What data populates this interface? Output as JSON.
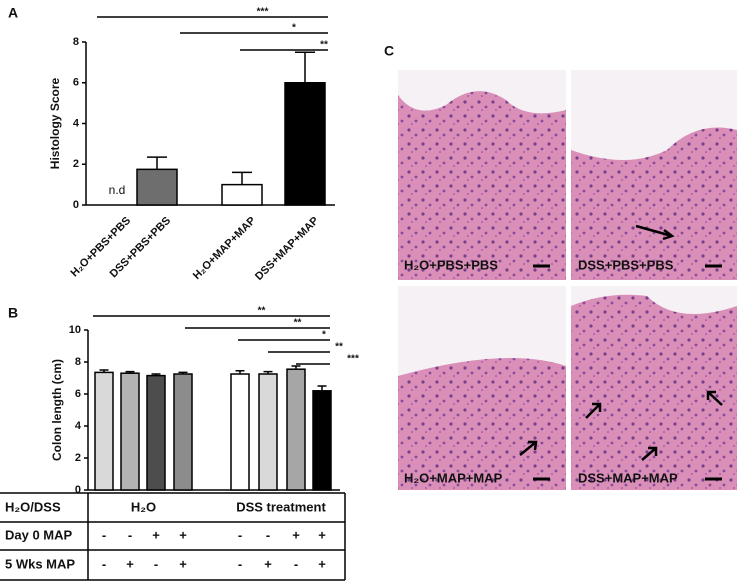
{
  "chart_data": [
    {
      "type": "bar",
      "panel": "A",
      "y_label": "Histology Score",
      "categories": [
        "H₂O+PBS+PBS",
        "DSS+PBS+PBS",
        "H₂O+MAP+MAP",
        "DSS+MAP+MAP"
      ],
      "values": [
        null,
        1.75,
        1.0,
        6.0
      ],
      "errors": [
        null,
        0.6,
        0.6,
        1.5
      ],
      "colors": [
        "#ffffff",
        "#6e6e6e",
        "#ffffff",
        "#000000"
      ],
      "annotations": [
        "n.d"
      ],
      "significance": [
        "***",
        "*",
        "**"
      ],
      "ylim": [
        0,
        8
      ],
      "yticks": [
        0,
        2,
        4,
        6,
        8
      ]
    },
    {
      "type": "bar",
      "panel": "B",
      "y_label": "Colon length (cm)",
      "categories": [
        null,
        null,
        null,
        null,
        null,
        null,
        null,
        null
      ],
      "values": [
        7.35,
        7.3,
        7.15,
        7.25,
        7.25,
        7.25,
        7.55,
        6.2
      ],
      "errors": [
        0.15,
        0.1,
        0.1,
        0.1,
        0.2,
        0.15,
        0.2,
        0.3
      ],
      "colors": [
        "#d9d9d9",
        "#b3b3b3",
        "#4d4d4d",
        "#8c8c8c",
        "#ffffff",
        "#d9d9d9",
        "#a6a6a6",
        "#000000"
      ],
      "significance": [
        "**",
        "**",
        "*",
        "**",
        "***"
      ],
      "ylim": [
        0,
        10
      ],
      "yticks": [
        0,
        2,
        4,
        6,
        8,
        10
      ],
      "conditions": {
        "group_row": {
          "label": "H₂O/DSS",
          "groups": [
            "H₂O",
            "DSS treatment"
          ]
        },
        "rows": [
          {
            "label": "Day 0 MAP",
            "values": [
              "-",
              "-",
              "+",
              "+",
              "-",
              "-",
              "+",
              "+"
            ]
          },
          {
            "label": "5 Wks MAP",
            "values": [
              "-",
              "+",
              "-",
              "+",
              "-",
              "+",
              "-",
              "+"
            ]
          }
        ]
      }
    }
  ],
  "images": {
    "panel": "C",
    "labels": [
      "H₂O+PBS+PBS",
      "DSS+PBS+PBS",
      "H₂O+MAP+MAP",
      "DSS+MAP+MAP"
    ]
  }
}
